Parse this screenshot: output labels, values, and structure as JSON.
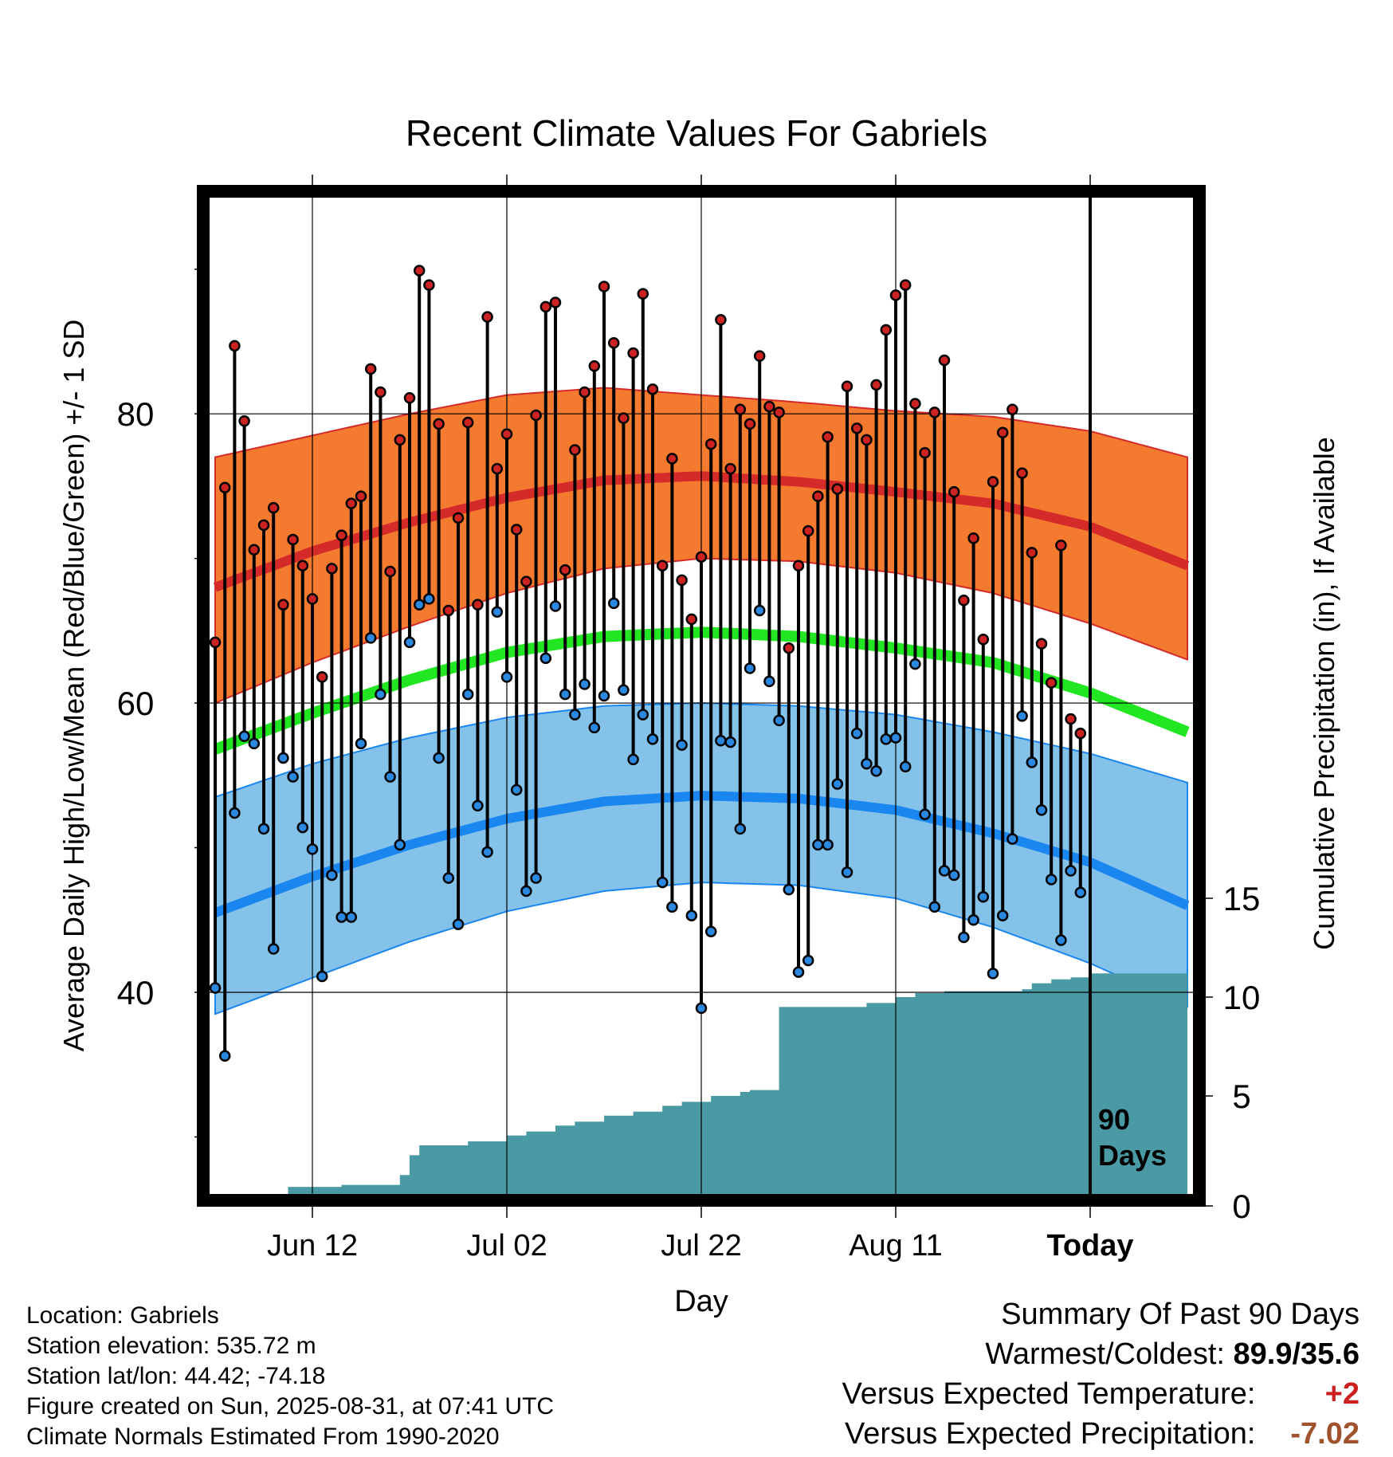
{
  "title": "Recent Climate Values For Gabriels",
  "y_axis_label": "Average Daily High/Low/Mean (Red/Blue/Green) +/- 1 SD",
  "y2_axis_label": "Cumulative Precipitation (in), If Available",
  "x_axis_label": "Day",
  "period_label": [
    "90",
    "Days"
  ],
  "meta": {
    "location": "Location: Gabriels",
    "elevation": "Station elevation: 535.72 m",
    "latlon": "Station lat/lon: 44.42; -74.18",
    "created": "Figure created on Sun, 2025-08-31, at 07:41 UTC",
    "normals": "Climate Normals Estimated From 1990-2020"
  },
  "summary": {
    "heading": "Summary Of Past 90 Days",
    "warmest_coldest_label": "Warmest/Coldest:",
    "warmest_coldest_value": "89.9/35.6",
    "temp_label": "Versus Expected Temperature:",
    "temp_value": "+2",
    "precip_label": "Versus Expected Precipitation:",
    "precip_value": "-7.02"
  },
  "colors": {
    "high_band": "#f47a30",
    "high_mean": "#d42a2a",
    "low_band": "#84c2ea",
    "low_mean": "#1a86f0",
    "mean": "#22e622",
    "precip": "#4a9aa5",
    "high_dot": "#cc2222",
    "low_dot": "#2a88e0"
  },
  "chart_data": {
    "type": "line",
    "x_ticks": [
      "Jun 12",
      "Jul 02",
      "Jul 22",
      "Aug 11",
      "Today"
    ],
    "x_tick_days": [
      10,
      30,
      50,
      70,
      90
    ],
    "y_ticks": [
      40,
      60,
      80
    ],
    "y_minor_ticks": [
      30,
      50,
      70,
      90
    ],
    "y_range": [
      26,
      95
    ],
    "y2_ticks": [
      0,
      5,
      10,
      15
    ],
    "y2_range": [
      0,
      50
    ],
    "x_range": [
      0,
      100
    ],
    "grid": true,
    "normal_high_mean": [
      [
        0,
        68
      ],
      [
        10,
        70.5
      ],
      [
        20,
        72.5
      ],
      [
        30,
        74.2
      ],
      [
        40,
        75.4
      ],
      [
        50,
        75.7
      ],
      [
        60,
        75.3
      ],
      [
        70,
        74.6
      ],
      [
        80,
        73.8
      ],
      [
        90,
        72.2
      ],
      [
        100,
        69.5
      ]
    ],
    "normal_high_upper": [
      [
        0,
        77
      ],
      [
        10,
        78.5
      ],
      [
        20,
        80
      ],
      [
        30,
        81.3
      ],
      [
        40,
        81.8
      ],
      [
        50,
        81.3
      ],
      [
        60,
        80.8
      ],
      [
        70,
        80.2
      ],
      [
        80,
        79.8
      ],
      [
        90,
        78.8
      ],
      [
        100,
        77
      ]
    ],
    "normal_high_lower": [
      [
        0,
        60
      ],
      [
        10,
        62.8
      ],
      [
        20,
        65.3
      ],
      [
        30,
        67.6
      ],
      [
        40,
        69.3
      ],
      [
        50,
        70
      ],
      [
        60,
        69.8
      ],
      [
        70,
        69
      ],
      [
        80,
        67.6
      ],
      [
        90,
        65.5
      ],
      [
        100,
        63
      ]
    ],
    "normal_mean": [
      [
        0,
        56.8
      ],
      [
        10,
        59.3
      ],
      [
        20,
        61.6
      ],
      [
        30,
        63.5
      ],
      [
        40,
        64.6
      ],
      [
        50,
        64.9
      ],
      [
        60,
        64.6
      ],
      [
        70,
        63.8
      ],
      [
        80,
        62.8
      ],
      [
        90,
        60.7
      ],
      [
        100,
        58
      ]
    ],
    "normal_low_mean": [
      [
        0,
        45.5
      ],
      [
        10,
        48
      ],
      [
        20,
        50.2
      ],
      [
        30,
        52
      ],
      [
        40,
        53.2
      ],
      [
        50,
        53.6
      ],
      [
        60,
        53.4
      ],
      [
        70,
        52.6
      ],
      [
        80,
        51
      ],
      [
        90,
        49
      ],
      [
        100,
        46
      ]
    ],
    "normal_low_upper": [
      [
        0,
        53.5
      ],
      [
        10,
        55.8
      ],
      [
        20,
        57.6
      ],
      [
        30,
        59
      ],
      [
        40,
        59.8
      ],
      [
        50,
        60
      ],
      [
        60,
        59.8
      ],
      [
        70,
        59.2
      ],
      [
        80,
        58
      ],
      [
        90,
        56.5
      ],
      [
        100,
        54.5
      ]
    ],
    "normal_low_lower": [
      [
        0,
        38.5
      ],
      [
        10,
        41
      ],
      [
        20,
        43.5
      ],
      [
        30,
        45.6
      ],
      [
        40,
        47
      ],
      [
        50,
        47.6
      ],
      [
        60,
        47.4
      ],
      [
        70,
        46.5
      ],
      [
        80,
        44.5
      ],
      [
        90,
        42
      ],
      [
        100,
        39
      ]
    ],
    "series": [
      {
        "name": "High",
        "values": [
          64.2,
          74.9,
          84.7,
          79.5,
          70.6,
          72.3,
          73.5,
          66.8,
          71.3,
          69.5,
          67.2,
          61.8,
          69.3,
          71.6,
          73.8,
          74.3,
          83.1,
          81.5,
          69.1,
          78.2,
          81.1,
          89.9,
          88.9,
          79.3,
          66.4,
          72.8,
          79.4,
          66.8,
          86.7,
          76.2,
          78.6,
          72,
          68.4,
          79.9,
          87.4,
          87.7,
          69.2,
          77.5,
          81.5,
          83.3,
          88.8,
          84.9,
          79.7,
          84.2,
          88.3,
          81.7,
          69.5,
          76.9,
          68.5,
          65.8,
          70.1,
          77.9,
          86.5,
          76.2,
          80.3,
          79.3,
          84,
          80.5,
          80.1,
          63.8,
          69.5,
          71.9,
          74.3,
          78.4,
          74.8,
          81.9,
          79,
          78.2,
          82,
          85.8,
          88.2,
          88.9,
          80.7,
          77.3,
          80.1,
          83.7,
          74.6,
          67.1,
          71.4,
          64.4,
          75.3,
          78.7,
          80.3,
          75.9,
          70.4,
          64.1,
          61.4,
          70.9,
          58.9,
          57.9
        ]
      },
      {
        "name": "Low",
        "values": [
          40.3,
          35.6,
          52.4,
          57.7,
          57.2,
          51.3,
          43,
          56.2,
          54.9,
          51.4,
          49.9,
          41.1,
          48.1,
          45.2,
          45.2,
          57.2,
          64.5,
          60.6,
          54.9,
          50.2,
          64.2,
          66.8,
          67.2,
          56.2,
          47.9,
          44.7,
          60.6,
          52.9,
          49.7,
          66.3,
          61.8,
          54,
          47,
          47.9,
          63.1,
          66.7,
          60.6,
          59.2,
          61.3,
          58.3,
          60.5,
          66.9,
          60.9,
          56.1,
          59.2,
          57.5,
          47.6,
          45.9,
          57.1,
          45.3,
          38.9,
          44.2,
          57.4,
          57.3,
          51.3,
          62.4,
          66.4,
          61.5,
          58.8,
          47.1,
          41.4,
          42.2,
          50.2,
          50.2,
          54.4,
          48.3,
          57.9,
          55.8,
          55.3,
          57.5,
          57.6,
          55.6,
          62.7,
          52.3,
          45.9,
          48.4,
          48.1,
          43.8,
          45,
          46.6,
          41.3,
          45.3,
          50.6,
          59.1,
          55.9,
          52.6,
          47.8,
          43.6,
          48.4,
          46.9
        ]
      },
      {
        "name": "Cumulative Precipitation",
        "step_days": [
          0,
          7.5,
          13,
          18,
          19,
          20,
          21,
          23,
          26,
          28,
          30,
          32,
          35,
          37,
          40,
          43,
          46,
          48,
          51,
          54,
          55,
          58,
          61,
          66,
          67,
          70,
          72,
          75,
          83,
          84,
          86,
          88,
          90,
          95,
          100
        ],
        "values": [
          0,
          0.4,
          0.5,
          0.5,
          1,
          2,
          2.5,
          2.5,
          2.7,
          2.7,
          3,
          3.2,
          3.5,
          3.7,
          4,
          4.2,
          4.5,
          4.7,
          5,
          5.2,
          5.3,
          9.5,
          9.5,
          9.5,
          9.7,
          10,
          10.2,
          10.3,
          10.4,
          10.7,
          10.9,
          11,
          11.2,
          11.2,
          11.2
        ]
      }
    ]
  }
}
